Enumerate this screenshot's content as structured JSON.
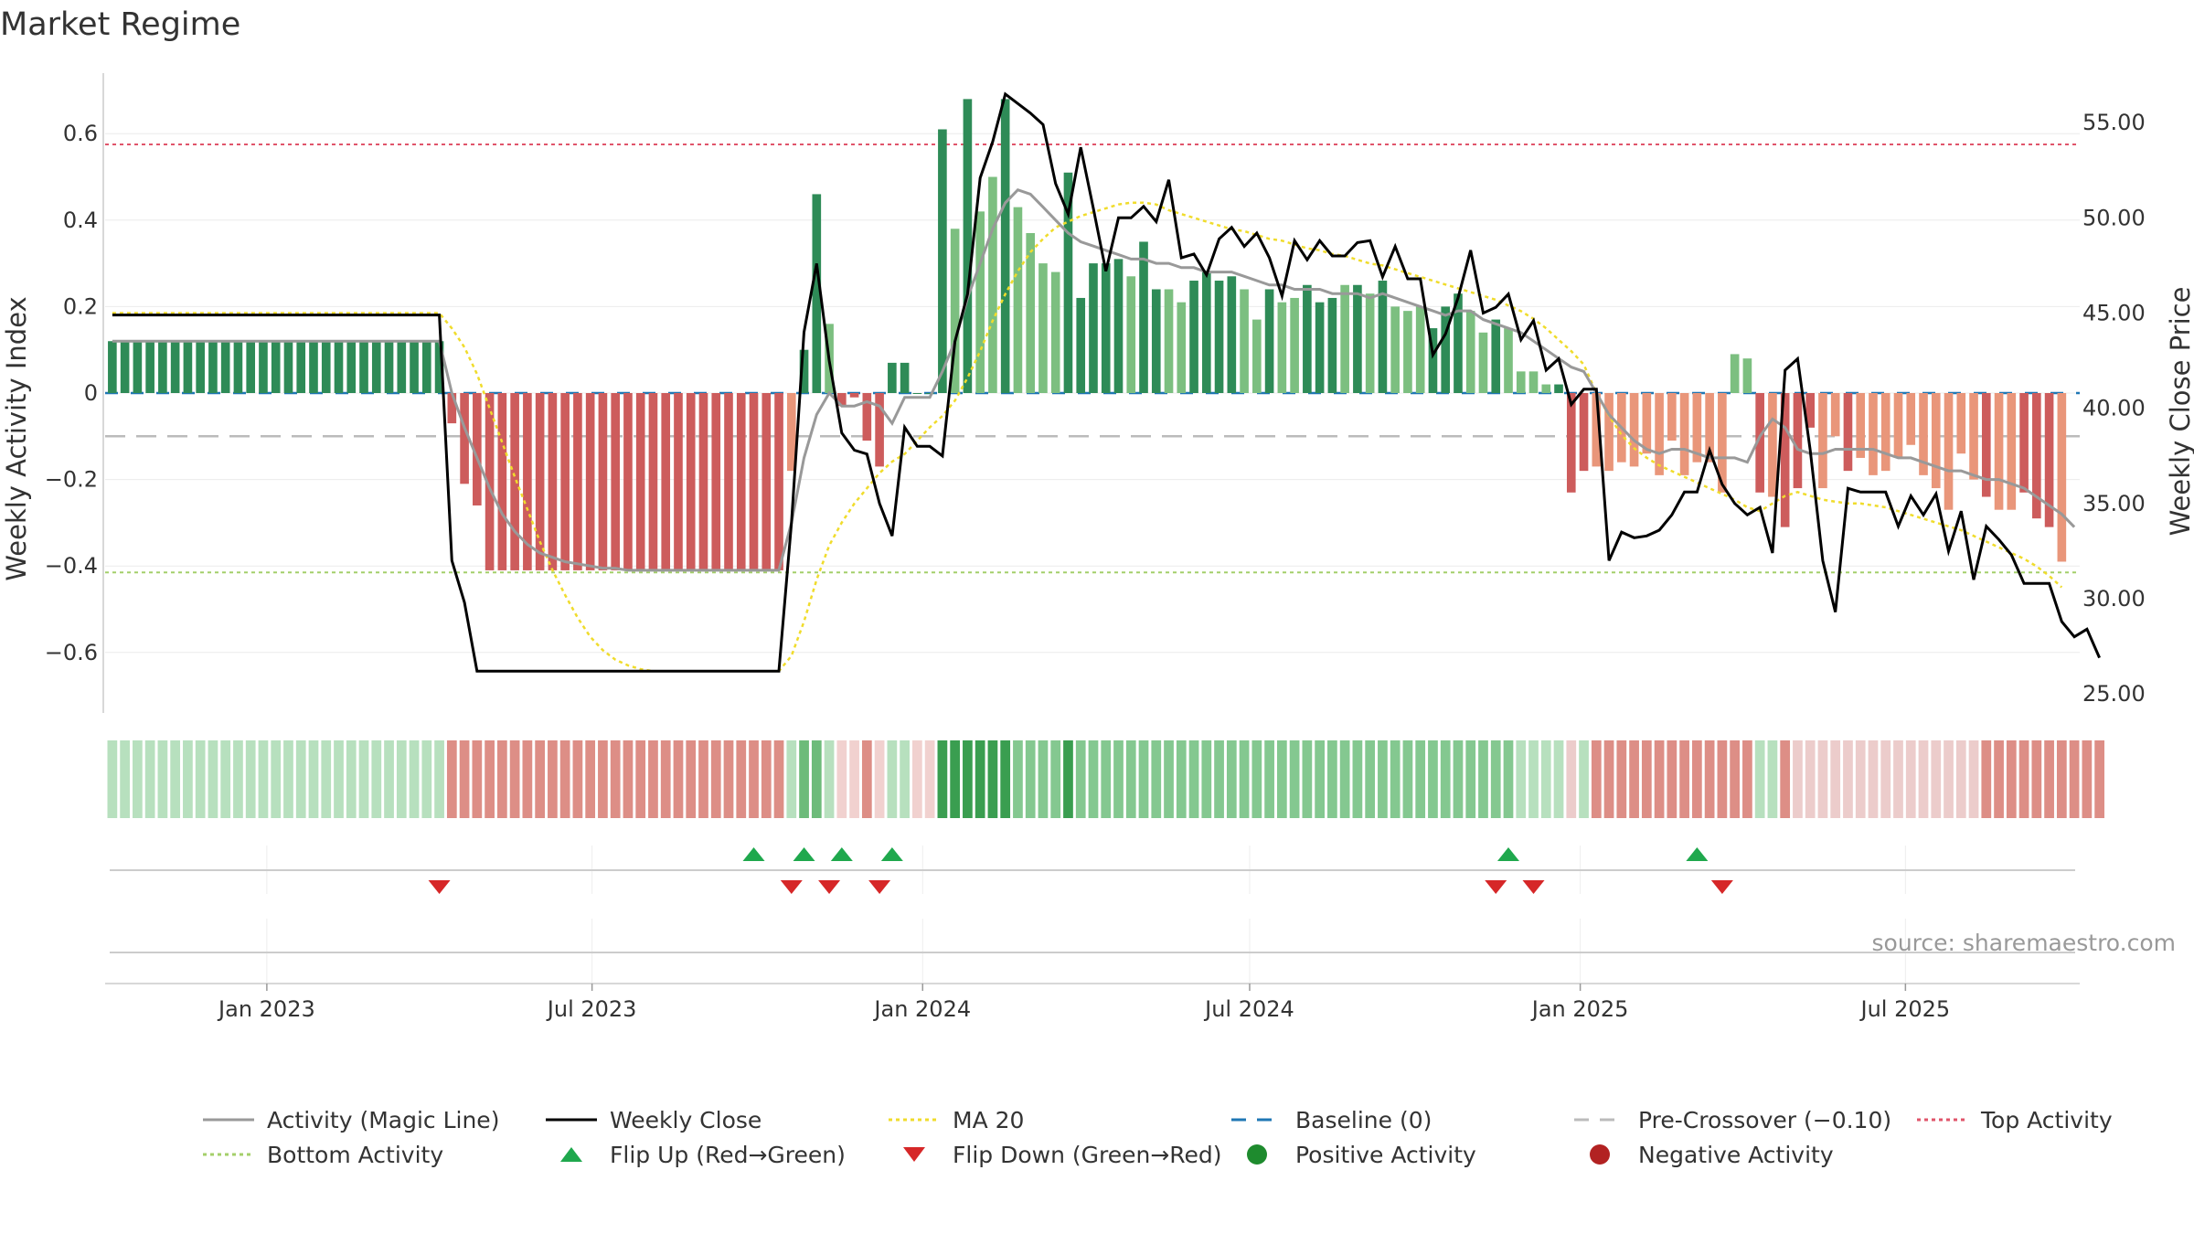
{
  "title": "Market Regime",
  "source": "source: sharemaestro.com",
  "colors": {
    "pos_dark": "#2e8b57",
    "pos_light": "#7cbf80",
    "neg_dark": "#cd5c5c",
    "neg_light": "#e9967a",
    "weekly_close": "#000000",
    "magic_line": "#999999",
    "ma20": "#f0dc2c",
    "baseline": "#1f77b4",
    "pre_crossover": "#bbbbbb",
    "top_activity": "#e0546a",
    "bottom_activity": "#a4cf6a",
    "flip_up": "#1fa84d",
    "flip_down": "#d62728",
    "positive_activity": "#1e8b2e",
    "negative_activity": "#b22222"
  },
  "legend": [
    {
      "label": "Activity (Magic Line)",
      "symbol": "line",
      "color": "#999999"
    },
    {
      "label": "Weekly Close",
      "symbol": "line",
      "color": "#000000"
    },
    {
      "label": "MA 20",
      "symbol": "dotted",
      "color": "#f0dc2c"
    },
    {
      "label": "Baseline (0)",
      "symbol": "dashed",
      "color": "#1f77b4"
    },
    {
      "label": "Pre-Crossover (−0.10)",
      "symbol": "dashed",
      "color": "#bbbbbb"
    },
    {
      "label": "Top Activity",
      "symbol": "dotted",
      "color": "#e0546a"
    },
    {
      "label": "Bottom Activity",
      "symbol": "dotted",
      "color": "#a4cf6a"
    },
    {
      "label": "Flip Up (Red→Green)",
      "symbol": "triangle-up",
      "color": "#1fa84d"
    },
    {
      "label": "Flip Down (Green→Red)",
      "symbol": "triangle-down",
      "color": "#d62728"
    },
    {
      "label": "Positive Activity",
      "symbol": "circle",
      "color": "#1e8b2e"
    },
    {
      "label": "Negative Activity",
      "symbol": "circle",
      "color": "#b22222"
    }
  ],
  "chart_data": {
    "type": "bar",
    "ylabel": "Weekly Activity Index",
    "y2label": "Weekly Close Price",
    "ylim": [
      -0.74,
      0.74
    ],
    "y2lim": [
      24.0,
      57.6
    ],
    "yticks": [
      0.6,
      0.4,
      0.2,
      0,
      -0.2,
      -0.4,
      -0.6
    ],
    "ytick_labels": [
      "0.6",
      "0.4",
      "0.2",
      "0",
      "−0.2",
      "−0.4",
      "−0.6"
    ],
    "y2ticks": [
      55,
      50,
      45,
      40,
      35,
      30,
      25
    ],
    "y2tick_labels": [
      "55.00",
      "50.00",
      "45.00",
      "40.00",
      "35.00",
      "30.00",
      "25.00"
    ],
    "xlim": [
      "2022-10-03",
      "2025-10-06"
    ],
    "xticks": [
      "2023-01-01",
      "2023-07-01",
      "2024-01-01",
      "2024-07-01",
      "2025-01-01",
      "2025-07-01"
    ],
    "xtick_labels": [
      "Jan 2023",
      "Jul 2023",
      "Jan 2024",
      "Jul 2024",
      "Jan 2025",
      "Jul 2025"
    ],
    "start_week": "2022-10-07",
    "week_interval_days": 7,
    "top_activity": 0.575,
    "bottom_activity": -0.415,
    "pre_crossover": -0.1,
    "baseline": 0,
    "activity": [
      0.12,
      0.12,
      0.12,
      0.12,
      0.12,
      0.12,
      0.12,
      0.12,
      0.12,
      0.12,
      0.12,
      0.12,
      0.12,
      0.12,
      0.12,
      0.12,
      0.12,
      0.12,
      0.12,
      0.12,
      0.12,
      0.12,
      0.12,
      0.12,
      0.12,
      0.12,
      0.12,
      -0.07,
      -0.21,
      -0.26,
      -0.41,
      -0.41,
      -0.41,
      -0.41,
      -0.41,
      -0.41,
      -0.41,
      -0.41,
      -0.41,
      -0.41,
      -0.41,
      -0.41,
      -0.41,
      -0.41,
      -0.41,
      -0.41,
      -0.41,
      -0.41,
      -0.41,
      -0.41,
      -0.41,
      -0.41,
      -0.41,
      -0.41,
      -0.18,
      0.1,
      0.46,
      0.16,
      -0.03,
      -0.01,
      -0.11,
      -0.17,
      0.07,
      0.07,
      0.0,
      0.0,
      0.61,
      0.38,
      0.68,
      0.42,
      0.5,
      0.68,
      0.43,
      0.37,
      0.3,
      0.28,
      0.51,
      0.22,
      0.3,
      0.3,
      0.31,
      0.27,
      0.35,
      0.24,
      0.24,
      0.21,
      0.26,
      0.28,
      0.26,
      0.27,
      0.24,
      0.17,
      0.24,
      0.21,
      0.22,
      0.25,
      0.21,
      0.22,
      0.25,
      0.25,
      0.23,
      0.26,
      0.2,
      0.19,
      0.2,
      0.15,
      0.2,
      0.23,
      0.19,
      0.14,
      0.17,
      0.15,
      0.05,
      0.05,
      0.02,
      0.02,
      -0.23,
      -0.18,
      -0.17,
      -0.18,
      -0.16,
      -0.17,
      -0.14,
      -0.19,
      -0.11,
      -0.19,
      -0.16,
      -0.16,
      -0.23,
      0.09,
      0.08,
      -0.23,
      -0.24,
      -0.31,
      -0.22,
      -0.08,
      -0.22,
      -0.1,
      -0.18,
      -0.15,
      -0.19,
      -0.18,
      -0.15,
      -0.12,
      -0.19,
      -0.22,
      -0.27,
      -0.14,
      -0.2,
      -0.24,
      -0.27,
      -0.27,
      -0.23,
      -0.29,
      -0.31,
      -0.39
    ],
    "activity_light": [
      false,
      false,
      false,
      false,
      false,
      false,
      false,
      false,
      false,
      false,
      false,
      false,
      false,
      false,
      false,
      false,
      false,
      false,
      false,
      false,
      false,
      false,
      false,
      false,
      false,
      false,
      false,
      false,
      false,
      false,
      false,
      false,
      false,
      false,
      false,
      false,
      false,
      false,
      false,
      false,
      false,
      false,
      false,
      false,
      false,
      false,
      false,
      false,
      false,
      false,
      false,
      false,
      false,
      false,
      true,
      false,
      false,
      true,
      false,
      false,
      false,
      false,
      false,
      false,
      false,
      false,
      false,
      true,
      false,
      true,
      true,
      false,
      true,
      true,
      true,
      true,
      false,
      false,
      false,
      false,
      false,
      true,
      false,
      false,
      true,
      true,
      false,
      false,
      false,
      false,
      true,
      true,
      false,
      true,
      true,
      false,
      false,
      false,
      true,
      false,
      true,
      false,
      true,
      true,
      true,
      false,
      false,
      false,
      true,
      true,
      false,
      true,
      true,
      true,
      true,
      false,
      false,
      false,
      true,
      true,
      true,
      true,
      true,
      true,
      true,
      true,
      true,
      true,
      true,
      true,
      true,
      false,
      true,
      false,
      false,
      false,
      true,
      true,
      false,
      true,
      true,
      true,
      true,
      true,
      true,
      true,
      true,
      true,
      true,
      false,
      true,
      true,
      false,
      false,
      false,
      true,
      false,
      false
    ],
    "weekly_close": [
      44.9,
      44.9,
      44.9,
      44.9,
      44.9,
      44.9,
      44.9,
      44.9,
      44.9,
      44.9,
      44.9,
      44.9,
      44.9,
      44.9,
      44.9,
      44.9,
      44.9,
      44.9,
      44.9,
      44.9,
      44.9,
      44.9,
      44.9,
      44.9,
      44.9,
      44.9,
      44.9,
      32.0,
      29.8,
      26.2,
      26.2,
      26.2,
      26.2,
      26.2,
      26.2,
      26.2,
      26.2,
      26.2,
      26.2,
      26.2,
      26.2,
      26.2,
      26.2,
      26.2,
      26.2,
      26.2,
      26.2,
      26.2,
      26.2,
      26.2,
      26.2,
      26.2,
      26.2,
      26.2,
      34.0,
      44.0,
      47.6,
      42.5,
      38.7,
      37.8,
      37.6,
      35.0,
      33.3,
      39.0,
      38.0,
      38.0,
      37.5,
      43.5,
      46.0,
      52.1,
      54.0,
      56.5,
      56.0,
      55.5,
      54.9,
      51.8,
      50.2,
      53.7,
      50.5,
      47.2,
      50.0,
      50.0,
      50.6,
      49.8,
      52.0,
      47.9,
      48.1,
      47.0,
      48.9,
      49.5,
      48.5,
      49.2,
      47.9,
      45.9,
      48.8,
      47.8,
      48.8,
      48.0,
      48.0,
      48.7,
      48.8,
      46.9,
      48.5,
      46.8,
      46.8,
      42.8,
      43.9,
      45.8,
      48.3,
      45.0,
      45.3,
      46.0,
      43.6,
      44.6,
      42.0,
      42.6,
      40.2,
      41.0,
      41.0,
      32.0,
      33.5,
      33.2,
      33.3,
      33.6,
      34.4,
      35.6,
      35.6,
      37.8,
      36.0,
      35.0,
      34.4,
      34.8,
      32.4,
      42.0,
      42.6,
      37.8,
      32.0,
      29.3,
      35.8,
      35.6,
      35.6,
      35.6,
      33.8,
      35.4,
      34.4,
      35.5,
      32.5,
      34.6,
      31.0,
      33.8,
      33.1,
      32.3,
      30.8,
      30.8,
      30.8,
      28.8,
      28.0,
      28.4,
      26.9
    ],
    "magic_line": [
      0.12,
      0.12,
      0.12,
      0.12,
      0.12,
      0.12,
      0.12,
      0.12,
      0.12,
      0.12,
      0.12,
      0.12,
      0.12,
      0.12,
      0.12,
      0.12,
      0.12,
      0.12,
      0.12,
      0.12,
      0.12,
      0.12,
      0.12,
      0.12,
      0.12,
      0.12,
      0.12,
      0.0,
      -0.08,
      -0.15,
      -0.22,
      -0.28,
      -0.32,
      -0.35,
      -0.37,
      -0.38,
      -0.39,
      -0.395,
      -0.4,
      -0.405,
      -0.405,
      -0.41,
      -0.41,
      -0.41,
      -0.41,
      -0.41,
      -0.41,
      -0.41,
      -0.41,
      -0.41,
      -0.41,
      -0.41,
      -0.41,
      -0.41,
      -0.3,
      -0.15,
      -0.05,
      0.0,
      -0.03,
      -0.03,
      -0.02,
      -0.03,
      -0.07,
      -0.01,
      -0.01,
      -0.01,
      0.05,
      0.12,
      0.22,
      0.3,
      0.38,
      0.44,
      0.47,
      0.46,
      0.43,
      0.4,
      0.37,
      0.35,
      0.34,
      0.33,
      0.32,
      0.31,
      0.31,
      0.3,
      0.3,
      0.29,
      0.29,
      0.28,
      0.28,
      0.28,
      0.27,
      0.26,
      0.25,
      0.25,
      0.24,
      0.24,
      0.24,
      0.23,
      0.23,
      0.23,
      0.22,
      0.23,
      0.22,
      0.21,
      0.2,
      0.19,
      0.18,
      0.19,
      0.19,
      0.17,
      0.16,
      0.15,
      0.14,
      0.12,
      0.1,
      0.08,
      0.06,
      0.05,
      0.0,
      -0.05,
      -0.08,
      -0.11,
      -0.13,
      -0.14,
      -0.13,
      -0.13,
      -0.14,
      -0.15,
      -0.15,
      -0.15,
      -0.16,
      -0.1,
      -0.06,
      -0.08,
      -0.13,
      -0.14,
      -0.14,
      -0.13,
      -0.13,
      -0.13,
      -0.13,
      -0.14,
      -0.15,
      -0.15,
      -0.16,
      -0.17,
      -0.18,
      -0.18,
      -0.19,
      -0.2,
      -0.2,
      -0.21,
      -0.22,
      -0.24,
      -0.26,
      -0.28,
      -0.31
    ],
    "ma20": [
      45.0,
      45.0,
      45.0,
      45.0,
      45.0,
      45.0,
      45.0,
      45.0,
      45.0,
      45.0,
      45.0,
      45.0,
      45.0,
      45.0,
      45.0,
      45.0,
      45.0,
      45.0,
      45.0,
      45.0,
      45.0,
      45.0,
      45.0,
      45.0,
      45.0,
      45.0,
      45.0,
      44.2,
      43.2,
      41.8,
      40.0,
      38.2,
      36.4,
      34.7,
      33.0,
      31.5,
      30.2,
      29.0,
      28.0,
      27.3,
      26.8,
      26.5,
      26.3,
      26.2,
      26.2,
      26.2,
      26.2,
      26.2,
      26.2,
      26.2,
      26.2,
      26.2,
      26.2,
      26.2,
      27.0,
      28.8,
      31.0,
      32.8,
      34.0,
      35.0,
      35.8,
      36.6,
      37.2,
      37.6,
      38.3,
      39.0,
      39.6,
      40.4,
      41.6,
      43.0,
      44.6,
      46.0,
      47.2,
      48.2,
      48.9,
      49.5,
      49.8,
      50.1,
      50.3,
      50.5,
      50.7,
      50.8,
      50.8,
      50.7,
      50.4,
      50.2,
      50.0,
      49.8,
      49.6,
      49.4,
      49.3,
      49.1,
      48.9,
      48.8,
      48.6,
      48.4,
      48.3,
      48.1,
      48.0,
      47.8,
      47.6,
      47.5,
      47.3,
      47.1,
      46.9,
      46.7,
      46.5,
      46.3,
      46.1,
      45.9,
      45.7,
      45.4,
      45.1,
      44.7,
      44.2,
      43.6,
      43.0,
      42.3,
      40.8,
      39.6,
      38.6,
      37.9,
      37.4,
      37.0,
      36.7,
      36.4,
      36.1,
      35.8,
      35.5,
      35.2,
      34.8,
      34.6,
      35.0,
      35.4,
      35.6,
      35.4,
      35.2,
      35.1,
      35.0,
      35.0,
      34.9,
      34.8,
      34.6,
      34.4,
      34.2,
      34.0,
      33.8,
      33.6,
      33.3,
      33.0,
      32.7,
      32.4,
      32.1,
      31.7,
      31.2,
      30.6
    ],
    "flip_up_weeks": [
      51,
      55,
      58,
      62,
      111,
      126
    ],
    "flip_down_weeks": [
      26,
      54,
      57,
      61,
      110,
      113,
      128
    ],
    "regime_strip": {
      "description_colors": [
        "#b7e0be",
        "#dd8e86",
        "#6dbb7a",
        "#eccccb",
        "#3a9e50",
        "#84c890",
        "#f1d1cf"
      ],
      "week_color_index": [
        0,
        0,
        0,
        0,
        0,
        0,
        0,
        0,
        0,
        0,
        0,
        0,
        0,
        0,
        0,
        0,
        0,
        0,
        0,
        0,
        0,
        0,
        0,
        0,
        0,
        0,
        0,
        1,
        1,
        1,
        1,
        1,
        1,
        1,
        1,
        1,
        1,
        1,
        1,
        1,
        1,
        1,
        1,
        1,
        1,
        1,
        1,
        1,
        1,
        1,
        1,
        1,
        1,
        1,
        0,
        2,
        2,
        0,
        6,
        6,
        1,
        6,
        0,
        0,
        6,
        6,
        4,
        4,
        4,
        4,
        4,
        4,
        5,
        5,
        5,
        5,
        4,
        5,
        5,
        5,
        5,
        5,
        5,
        5,
        5,
        5,
        5,
        5,
        5,
        5,
        5,
        5,
        5,
        5,
        5,
        5,
        5,
        5,
        5,
        5,
        5,
        5,
        5,
        5,
        5,
        5,
        5,
        5,
        5,
        5,
        5,
        5,
        0,
        0,
        0,
        0,
        3,
        0,
        1,
        1,
        1,
        1,
        1,
        1,
        1,
        1,
        1,
        1,
        1,
        1,
        1,
        0,
        0,
        1,
        3,
        3,
        3,
        3,
        3,
        3,
        3,
        3,
        3,
        3,
        3,
        3,
        3,
        3,
        3,
        1,
        1,
        1,
        1,
        1,
        1,
        1,
        1,
        1,
        1
      ]
    }
  }
}
